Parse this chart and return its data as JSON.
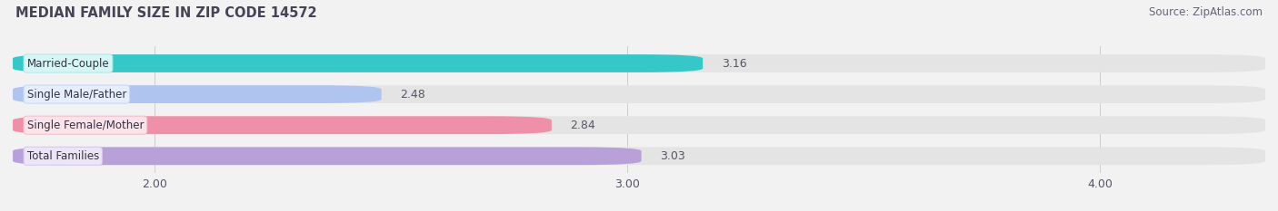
{
  "title": "MEDIAN FAMILY SIZE IN ZIP CODE 14572",
  "source": "Source: ZipAtlas.com",
  "categories": [
    "Married-Couple",
    "Single Male/Father",
    "Single Female/Mother",
    "Total Families"
  ],
  "values": [
    3.16,
    2.48,
    2.84,
    3.03
  ],
  "bar_colors": [
    "#36c8c8",
    "#afc4ef",
    "#f090a8",
    "#b8a0d8"
  ],
  "label_bg_colors": [
    "#e0f8f8",
    "#eaf0fc",
    "#fce8ee",
    "#f0eaf8"
  ],
  "label_border_colors": [
    "#b0e8e8",
    "#c8d8f4",
    "#f4c0cc",
    "#d8c8ec"
  ],
  "xlim": [
    1.7,
    4.35
  ],
  "xticks": [
    2.0,
    3.0,
    4.0
  ],
  "xtick_labels": [
    "2.00",
    "3.00",
    "4.00"
  ],
  "figsize": [
    14.06,
    2.33
  ],
  "dpi": 100,
  "title_color": "#444455",
  "source_color": "#666677",
  "value_label_color": "#555566",
  "bar_height": 0.58,
  "bg_color": "#f2f2f2",
  "track_color": "#e4e4e4"
}
